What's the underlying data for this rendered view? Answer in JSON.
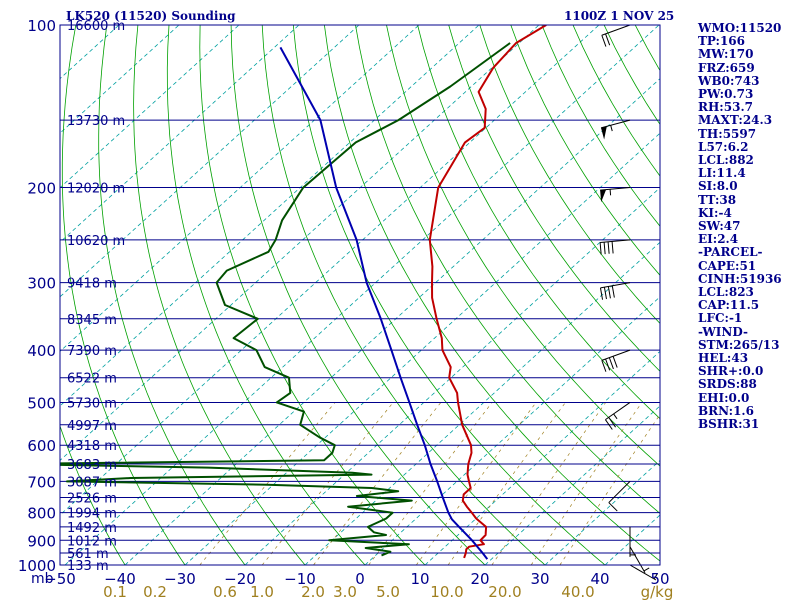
{
  "header": {
    "station_title": "LK520 (11520) Sounding",
    "time_title": "1100Z  1 NOV 25"
  },
  "colors": {
    "frame": "#00008b",
    "temperature": "#c00000",
    "dewpoint": "#005000",
    "parcel": "#0000b0",
    "dry_adiabat": "#00a000",
    "isotherm": "#00a0a0",
    "mixing_ratio": "#20a0ff",
    "mixing_label": "#a08020"
  },
  "indices": [
    "WMO:11520",
    "TP:166",
    "MW:170",
    "FRZ:659",
    "WB0:743",
    "PW:0.73",
    "RH:53.7",
    "MAXT:24.3",
    "TH:5597",
    "L57:6.2",
    "LCL:882",
    "LI:11.4",
    "SI:8.0",
    "TT:38",
    "KI:-4",
    "SW:47",
    "EI:2.4",
    "-PARCEL-",
    "CAPE:51",
    "CINH:51936",
    "LCL:823",
    "CAP:11.5",
    "LFC:-1",
    "-WIND-",
    "STM:265/13",
    "HEL:43",
    "SHR+:0.0",
    "SRDS:88",
    "EHI:0.0",
    "BRN:1.6",
    "BSHR:31"
  ],
  "chart_data": {
    "type": "line",
    "xlabel": "",
    "ylabel": "mb",
    "ylim": [
      1000,
      100
    ],
    "xlim": [
      -50,
      50
    ],
    "temperature_ticks": [
      "-50",
      "-40",
      "-30",
      "-20",
      "-10",
      "0",
      "10",
      "20",
      "30",
      "40",
      "50"
    ],
    "pressure_ticks": [
      "100",
      "200",
      "300",
      "400",
      "500",
      "600",
      "700",
      "800",
      "900",
      "1000"
    ],
    "mixing_ratio_ticks": [
      "0.1",
      "0.2",
      "0.6",
      "1.0",
      "2.0",
      "3.0",
      "5.0",
      "10.0",
      "20.0",
      "40.0",
      "g/kg"
    ],
    "height_labels": [
      {
        "p": 100,
        "label": "16600 m"
      },
      {
        "p": 150,
        "label": "13730 m"
      },
      {
        "p": 200,
        "label": "12020 m"
      },
      {
        "p": 250,
        "label": "10620 m"
      },
      {
        "p": 300,
        "label": "9418 m"
      },
      {
        "p": 350,
        "label": "8345 m"
      },
      {
        "p": 400,
        "label": "7390 m"
      },
      {
        "p": 450,
        "label": "6522 m"
      },
      {
        "p": 500,
        "label": "5730 m"
      },
      {
        "p": 550,
        "label": "4997 m"
      },
      {
        "p": 600,
        "label": "4318 m"
      },
      {
        "p": 650,
        "label": "3683 m"
      },
      {
        "p": 700,
        "label": "3087 m"
      },
      {
        "p": 750,
        "label": "2526 m"
      },
      {
        "p": 800,
        "label": "1994 m"
      },
      {
        "p": 850,
        "label": "1492 m"
      },
      {
        "p": 900,
        "label": "1012 m"
      },
      {
        "p": 950,
        "label": "561 m"
      },
      {
        "p": 1000,
        "label": "133 m"
      }
    ],
    "series": [
      {
        "key": "temperature",
        "points": [
          [
            100,
            -68.8
          ],
          [
            108,
            -70.5
          ],
          [
            120,
            -69.8
          ],
          [
            133,
            -67.8
          ],
          [
            143,
            -63.5
          ],
          [
            155,
            -60.2
          ],
          [
            165,
            -60.8
          ],
          [
            200,
            -57
          ],
          [
            250,
            -48.8
          ],
          [
            280,
            -43.5
          ],
          [
            300,
            -40.6
          ],
          [
            320,
            -37.8
          ],
          [
            350,
            -33.2
          ],
          [
            380,
            -28.8
          ],
          [
            400,
            -26.5
          ],
          [
            430,
            -22
          ],
          [
            450,
            -20.3
          ],
          [
            480,
            -16.2
          ],
          [
            500,
            -14.3
          ],
          [
            550,
            -9.5
          ],
          [
            600,
            -4.3
          ],
          [
            620,
            -2.8
          ],
          [
            650,
            -1.3
          ],
          [
            680,
            0.5
          ],
          [
            700,
            2
          ],
          [
            720,
            3.5
          ],
          [
            740,
            3.5
          ],
          [
            760,
            4.5
          ],
          [
            780,
            6.3
          ],
          [
            800,
            8.2
          ],
          [
            820,
            10
          ],
          [
            850,
            13.2
          ],
          [
            880,
            14.6
          ],
          [
            900,
            14.7
          ],
          [
            915,
            16
          ],
          [
            925,
            14
          ],
          [
            935,
            14
          ],
          [
            950,
            14.6
          ],
          [
            970,
            15.2
          ]
        ]
      },
      {
        "key": "dewpoint",
        "points": [
          [
            108,
            -71.5
          ],
          [
            130,
            -73.5
          ],
          [
            150,
            -76
          ],
          [
            165,
            -79
          ],
          [
            200,
            -79.5
          ],
          [
            230,
            -77
          ],
          [
            250,
            -74.5
          ],
          [
            263,
            -73.5
          ],
          [
            285,
            -77
          ],
          [
            300,
            -76.5
          ],
          [
            330,
            -71
          ],
          [
            350,
            -63
          ],
          [
            380,
            -63.5
          ],
          [
            400,
            -57.5
          ],
          [
            430,
            -53
          ],
          [
            450,
            -47
          ],
          [
            480,
            -44
          ],
          [
            500,
            -44.5
          ],
          [
            520,
            -38.3
          ],
          [
            550,
            -36.5
          ],
          [
            580,
            -31
          ],
          [
            600,
            -27
          ],
          [
            620,
            -26
          ],
          [
            640,
            -26
          ],
          [
            650,
            -78
          ],
          [
            660,
            -44
          ],
          [
            675,
            -19
          ],
          [
            680,
            -15.5
          ],
          [
            690,
            -55
          ],
          [
            700,
            -65
          ],
          [
            710,
            -31
          ],
          [
            720,
            -13
          ],
          [
            730,
            -8
          ],
          [
            745,
            -14
          ],
          [
            760,
            -4
          ],
          [
            780,
            -13.5
          ],
          [
            800,
            -5
          ],
          [
            820,
            -5
          ],
          [
            850,
            -6.5
          ],
          [
            870,
            -4.5
          ],
          [
            880,
            -2
          ],
          [
            900,
            -10.5
          ],
          [
            915,
            3.5
          ],
          [
            930,
            -3
          ],
          [
            945,
            1.8
          ],
          [
            960,
            1
          ]
        ]
      },
      {
        "key": "parcel",
        "points": [
          [
            110,
            -109
          ],
          [
            150,
            -89
          ],
          [
            200,
            -74
          ],
          [
            250,
            -61
          ],
          [
            300,
            -51.5
          ],
          [
            350,
            -42.5
          ],
          [
            400,
            -35
          ],
          [
            450,
            -28.4
          ],
          [
            500,
            -22.4
          ],
          [
            550,
            -17
          ],
          [
            600,
            -12
          ],
          [
            650,
            -7.6
          ],
          [
            700,
            -3.3
          ],
          [
            750,
            0.6
          ],
          [
            800,
            4.3
          ],
          [
            823,
            6.1
          ],
          [
            850,
            8.7
          ],
          [
            900,
            13.3
          ],
          [
            950,
            17.4
          ],
          [
            975,
            19.3
          ]
        ]
      }
    ],
    "wind_barbs": [
      {
        "p": 100,
        "dir": 250,
        "spd": 20
      },
      {
        "p": 150,
        "dir": 255,
        "spd": 55
      },
      {
        "p": 200,
        "dir": 265,
        "spd": 55
      },
      {
        "p": 250,
        "dir": 265,
        "spd": 40
      },
      {
        "p": 300,
        "dir": 260,
        "spd": 40
      },
      {
        "p": 400,
        "dir": 250,
        "spd": 40
      },
      {
        "p": 500,
        "dir": 235,
        "spd": 25
      },
      {
        "p": 700,
        "dir": 225,
        "spd": 10
      },
      {
        "p": 850,
        "dir": 180,
        "spd": 5
      },
      {
        "p": 925,
        "dir": 150,
        "spd": 5
      },
      {
        "p": 1000,
        "dir": 120,
        "spd": 5
      }
    ]
  }
}
